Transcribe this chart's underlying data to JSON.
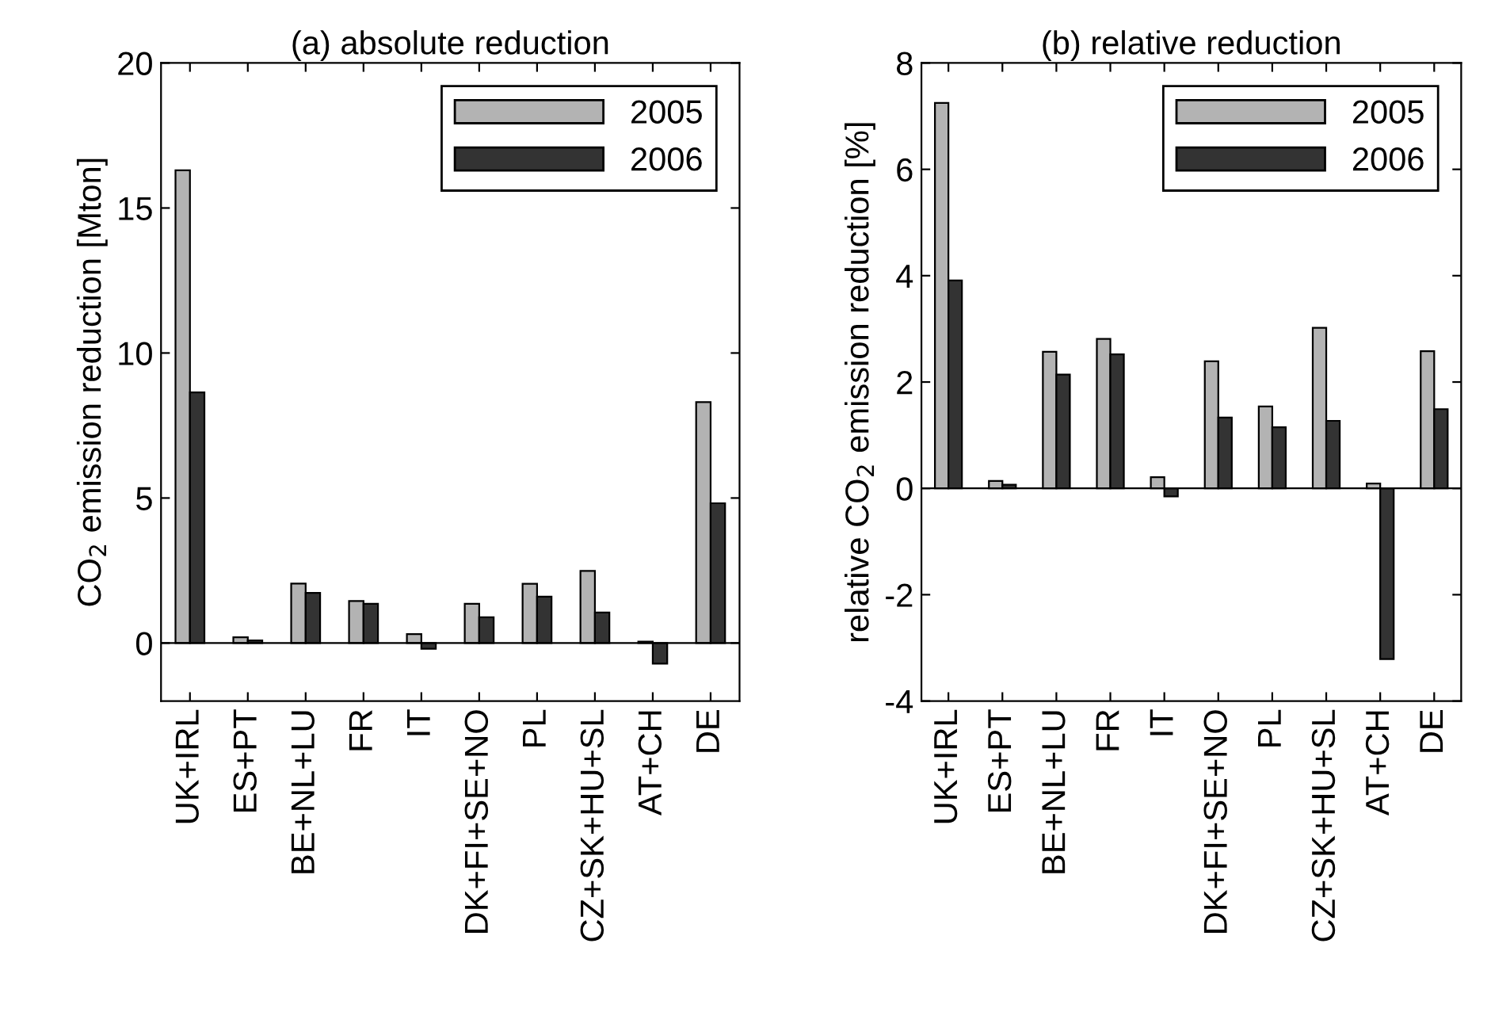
{
  "chart_data": [
    {
      "type": "bar",
      "title": "(a) absolute reduction",
      "ylabel": "CO$_{2}$ emission reduction [Mton]",
      "categories": [
        "UK+IRL",
        "ES+PT",
        "BE+NL+LU",
        "FR",
        "IT",
        "DK+FI+SE+NO",
        "PL",
        "CZ+SK+HU+SL",
        "AT+CH",
        "DE"
      ],
      "series": [
        {
          "name": "2005",
          "color": "#b3b3b3",
          "values": [
            16.3,
            0.2,
            2.05,
            1.45,
            0.31,
            1.35,
            2.04,
            2.49,
            0.05,
            8.31
          ]
        },
        {
          "name": "2006",
          "color": "#333333",
          "values": [
            8.64,
            0.09,
            1.73,
            1.35,
            -0.2,
            0.89,
            1.6,
            1.05,
            -0.71,
            4.82
          ]
        }
      ],
      "ylim": [
        -2,
        20
      ],
      "yticks": [
        0,
        5,
        10,
        15,
        20
      ],
      "legend": "top right"
    },
    {
      "type": "bar",
      "title": "(b) relative reduction",
      "ylabel": "relative CO$_{2}$ emission reduction [%]",
      "categories": [
        "UK+IRL",
        "ES+PT",
        "BE+NL+LU",
        "FR",
        "IT",
        "DK+FI+SE+NO",
        "PL",
        "CZ+SK+HU+SL",
        "AT+CH",
        "DE"
      ],
      "series": [
        {
          "name": "2005",
          "color": "#b3b3b3",
          "values": [
            7.25,
            0.14,
            2.57,
            2.81,
            0.21,
            2.39,
            1.54,
            3.02,
            0.09,
            2.58
          ]
        },
        {
          "name": "2006",
          "color": "#333333",
          "values": [
            3.91,
            0.07,
            2.14,
            2.52,
            -0.15,
            1.33,
            1.15,
            1.27,
            -3.21,
            1.49
          ]
        }
      ],
      "ylim": [
        -4,
        8
      ],
      "yticks": [
        -4,
        -2,
        0,
        2,
        4,
        6,
        8
      ],
      "legend": "top right"
    }
  ]
}
